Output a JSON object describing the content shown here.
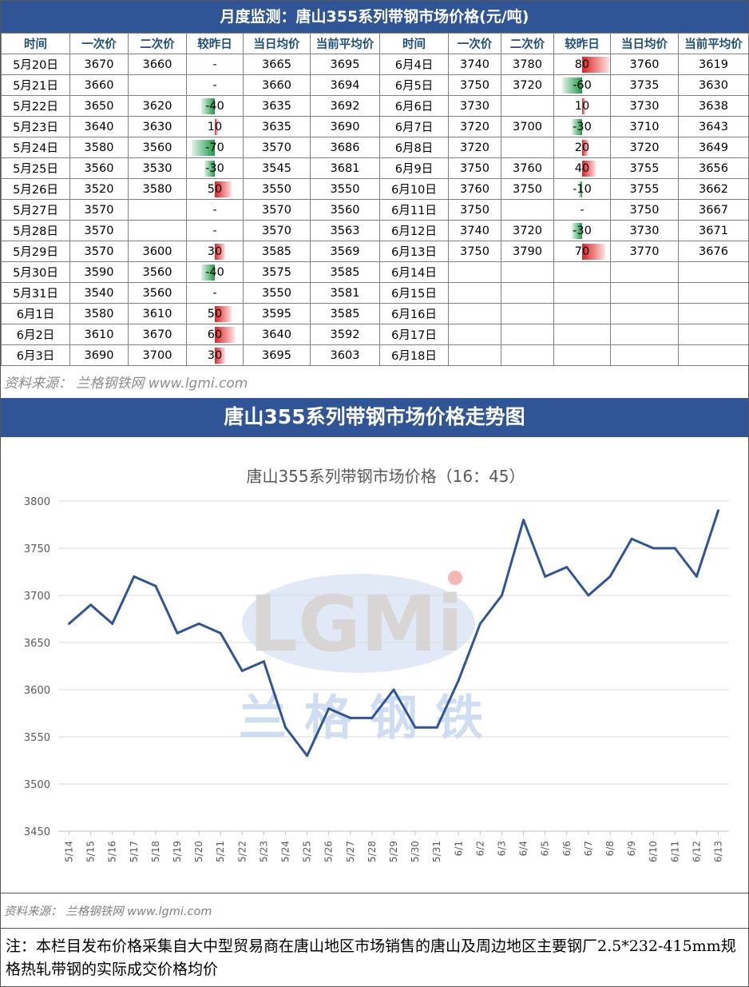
{
  "header": {
    "title": "月度监测：唐山355系列带钢市场价格(元/吨)"
  },
  "table": {
    "columns": [
      "时间",
      "一次价",
      "二次价",
      "较昨日",
      "当日均价",
      "当前平均价",
      "时间",
      "一次价",
      "二次价",
      "较昨日",
      "当日均价",
      "当前平均价"
    ],
    "left_rows": [
      {
        "date": "5月20日",
        "p1": "3670",
        "p2": "3660",
        "chg": "-",
        "avg": "3665",
        "cur": "3695"
      },
      {
        "date": "5月21日",
        "p1": "3660",
        "p2": "",
        "chg": "-",
        "avg": "3660",
        "cur": "3694"
      },
      {
        "date": "5月22日",
        "p1": "3650",
        "p2": "3620",
        "chg": "-40",
        "avg": "3635",
        "cur": "3692"
      },
      {
        "date": "5月23日",
        "p1": "3640",
        "p2": "3630",
        "chg": "10",
        "avg": "3635",
        "cur": "3690"
      },
      {
        "date": "5月24日",
        "p1": "3580",
        "p2": "3560",
        "chg": "-70",
        "avg": "3570",
        "cur": "3686"
      },
      {
        "date": "5月25日",
        "p1": "3560",
        "p2": "3530",
        "chg": "-30",
        "avg": "3545",
        "cur": "3681"
      },
      {
        "date": "5月26日",
        "p1": "3520",
        "p2": "3580",
        "chg": "50",
        "avg": "3550",
        "cur": "3550"
      },
      {
        "date": "5月27日",
        "p1": "3570",
        "p2": "",
        "chg": "-",
        "avg": "3570",
        "cur": "3560"
      },
      {
        "date": "5月28日",
        "p1": "3570",
        "p2": "",
        "chg": "-",
        "avg": "3570",
        "cur": "3563"
      },
      {
        "date": "5月29日",
        "p1": "3570",
        "p2": "3600",
        "chg": "30",
        "avg": "3585",
        "cur": "3569"
      },
      {
        "date": "5月30日",
        "p1": "3590",
        "p2": "3560",
        "chg": "-40",
        "avg": "3575",
        "cur": "3585"
      },
      {
        "date": "5月31日",
        "p1": "3540",
        "p2": "3560",
        "chg": "-",
        "avg": "3550",
        "cur": "3581"
      },
      {
        "date": "6月1日",
        "p1": "3580",
        "p2": "3610",
        "chg": "50",
        "avg": "3595",
        "cur": "3585"
      },
      {
        "date": "6月2日",
        "p1": "3610",
        "p2": "3670",
        "chg": "60",
        "avg": "3640",
        "cur": "3592"
      },
      {
        "date": "6月3日",
        "p1": "3690",
        "p2": "3700",
        "chg": "30",
        "avg": "3695",
        "cur": "3603"
      }
    ],
    "right_rows": [
      {
        "date": "6月4日",
        "p1": "3740",
        "p2": "3780",
        "chg": "80",
        "avg": "3760",
        "cur": "3619"
      },
      {
        "date": "6月5日",
        "p1": "3750",
        "p2": "3720",
        "chg": "-60",
        "avg": "3735",
        "cur": "3630"
      },
      {
        "date": "6月6日",
        "p1": "3730",
        "p2": "",
        "chg": "10",
        "avg": "3730",
        "cur": "3638"
      },
      {
        "date": "6月7日",
        "p1": "3720",
        "p2": "3700",
        "chg": "-30",
        "avg": "3710",
        "cur": "3643"
      },
      {
        "date": "6月8日",
        "p1": "3720",
        "p2": "",
        "chg": "20",
        "avg": "3720",
        "cur": "3649"
      },
      {
        "date": "6月9日",
        "p1": "3750",
        "p2": "3760",
        "chg": "40",
        "avg": "3755",
        "cur": "3656"
      },
      {
        "date": "6月10日",
        "p1": "3760",
        "p2": "3750",
        "chg": "-10",
        "avg": "3755",
        "cur": "3662"
      },
      {
        "date": "6月11日",
        "p1": "3750",
        "p2": "",
        "chg": "-",
        "avg": "3750",
        "cur": "3667"
      },
      {
        "date": "6月12日",
        "p1": "3740",
        "p2": "3720",
        "chg": "-30",
        "avg": "3730",
        "cur": "3671"
      },
      {
        "date": "6月13日",
        "p1": "3750",
        "p2": "3790",
        "chg": "70",
        "avg": "3770",
        "cur": "3676"
      },
      {
        "date": "6月14日",
        "p1": "",
        "p2": "",
        "chg": "",
        "avg": "",
        "cur": ""
      },
      {
        "date": "6月15日",
        "p1": "",
        "p2": "",
        "chg": "",
        "avg": "",
        "cur": ""
      },
      {
        "date": "6月16日",
        "p1": "",
        "p2": "",
        "chg": "",
        "avg": "",
        "cur": ""
      },
      {
        "date": "6月17日",
        "p1": "",
        "p2": "",
        "chg": "",
        "avg": "",
        "cur": ""
      },
      {
        "date": "6月18日",
        "p1": "",
        "p2": "",
        "chg": "",
        "avg": "",
        "cur": ""
      }
    ]
  },
  "source_top": "资料来源： 兰格钢铁网 www.lgmi.com",
  "chart_header": "唐山355系列带钢市场价格走势图",
  "watermark": {
    "logo": "LGMi",
    "chinese": "兰格钢铁"
  },
  "colors": {
    "header_bg": "#2f5597",
    "line": "#2f5597",
    "increase_bar": "#e02020",
    "decrease_bar": "#1a9a49"
  },
  "chart_data": {
    "type": "line",
    "title": "唐山355系列带钢市场价格（16：45）",
    "xlabel": "",
    "ylabel": "",
    "ylim": [
      3450,
      3800
    ],
    "yticks": [
      3450,
      3500,
      3550,
      3600,
      3650,
      3700,
      3750,
      3800
    ],
    "grid": true,
    "legend": "none",
    "x": [
      "5/14",
      "5/15",
      "5/16",
      "5/17",
      "5/18",
      "5/19",
      "5/20",
      "5/21",
      "5/22",
      "5/23",
      "5/24",
      "5/25",
      "5/26",
      "5/27",
      "5/28",
      "5/29",
      "5/30",
      "5/31",
      "6/1",
      "6/2",
      "6/3",
      "6/4",
      "6/5",
      "6/6",
      "6/7",
      "6/8",
      "6/9",
      "6/10",
      "6/11",
      "6/12",
      "6/13"
    ],
    "series": [
      {
        "values": [
          3670,
          3690,
          3670,
          3720,
          3710,
          3660,
          3670,
          3660,
          3620,
          3630,
          3560,
          3530,
          3580,
          3570,
          3570,
          3600,
          3560,
          3560,
          3610,
          3670,
          3700,
          3780,
          3720,
          3730,
          3700,
          3720,
          3760,
          3750,
          3750,
          3720,
          3790
        ]
      }
    ]
  },
  "source_bottom": "资料来源： 兰格钢铁网 www.lgmi.com",
  "note": "注：本栏目发布价格采集自大中型贸易商在唐山地区市场销售的唐山及周边地区主要钢厂2.5*232-415mm规格热轧带钢的实际成交价格均价"
}
